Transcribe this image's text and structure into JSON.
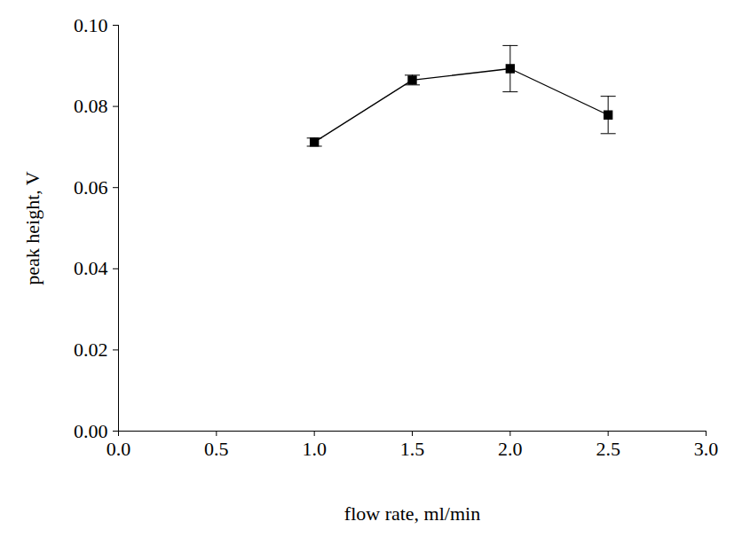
{
  "chart_data": {
    "type": "line",
    "x_label": "flow rate, ml/min",
    "y_label": "peak height, V",
    "x": [
      1.0,
      1.5,
      2.0,
      2.5
    ],
    "values": [
      0.0712,
      0.0865,
      0.0893,
      0.0779
    ],
    "errors": [
      0.001,
      0.0012,
      0.0057,
      0.0046
    ],
    "color": "#000000",
    "marker": "square",
    "line_style": "solid",
    "xlim": [
      0,
      3
    ],
    "xticks": [
      {
        "value": 0,
        "label": "0.0"
      },
      {
        "value": 0.5,
        "label": "0.5"
      },
      {
        "value": 1,
        "label": "1.0"
      },
      {
        "value": 1.5,
        "label": "1.5"
      },
      {
        "value": 2,
        "label": "2.0"
      },
      {
        "value": 2.5,
        "label": "2.5"
      },
      {
        "value": 3,
        "label": "3.0"
      }
    ],
    "ylim": [
      0,
      0.1
    ],
    "yticks": [
      {
        "value": 0,
        "label": "0.00"
      },
      {
        "value": 0.02,
        "label": "0.02"
      },
      {
        "value": 0.04,
        "label": "0.04"
      },
      {
        "value": 0.06,
        "label": "0.06"
      },
      {
        "value": 0.08,
        "label": "0.08"
      },
      {
        "value": 0.1,
        "label": "0.10"
      }
    ],
    "grid": false
  }
}
